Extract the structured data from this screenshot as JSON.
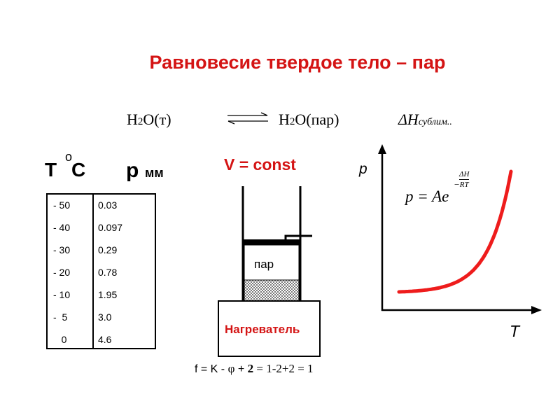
{
  "title": "Равновесие  твердое тело – пар",
  "equation": {
    "left_base1": "H",
    "left_sub": "2",
    "left_base2": "O(т)",
    "right_base1": "H",
    "right_sub": "2",
    "right_base2": "O(пар)",
    "delta_h": "ΔH",
    "delta_h_sub": "сублим.."
  },
  "table": {
    "header_t": "Т",
    "header_o": "о",
    "header_c": "С",
    "header_p": "р",
    "header_mm": "мм",
    "rows": [
      {
        "t": "- 50",
        "p": "0.03"
      },
      {
        "t": "- 40",
        "p": "0.097"
      },
      {
        "t": "- 30",
        "p": "0.29"
      },
      {
        "t": "- 20",
        "p": "0.78"
      },
      {
        "t": "- 10",
        "p": "1.95"
      },
      {
        "t": "-  5",
        "p": "3.0"
      },
      {
        "t": "   0",
        "p": "4.6"
      }
    ]
  },
  "apparatus": {
    "v_const": "V = const",
    "vapor_label": "пар",
    "heater_label": "Нагреватель",
    "heater_color": "#d41414"
  },
  "phase_rule": {
    "f": "f = K - ",
    "phi": "φ",
    "plus": " + ",
    "two": "2",
    "rest": " = 1-2+2 = 1"
  },
  "graph": {
    "y_label": "p",
    "x_label": "T",
    "law_text": "p = Ae",
    "law_exp_minus": "−",
    "law_exp_num": "ΔH",
    "law_exp_den": "RT",
    "curve_color": "#ee1c1c"
  }
}
